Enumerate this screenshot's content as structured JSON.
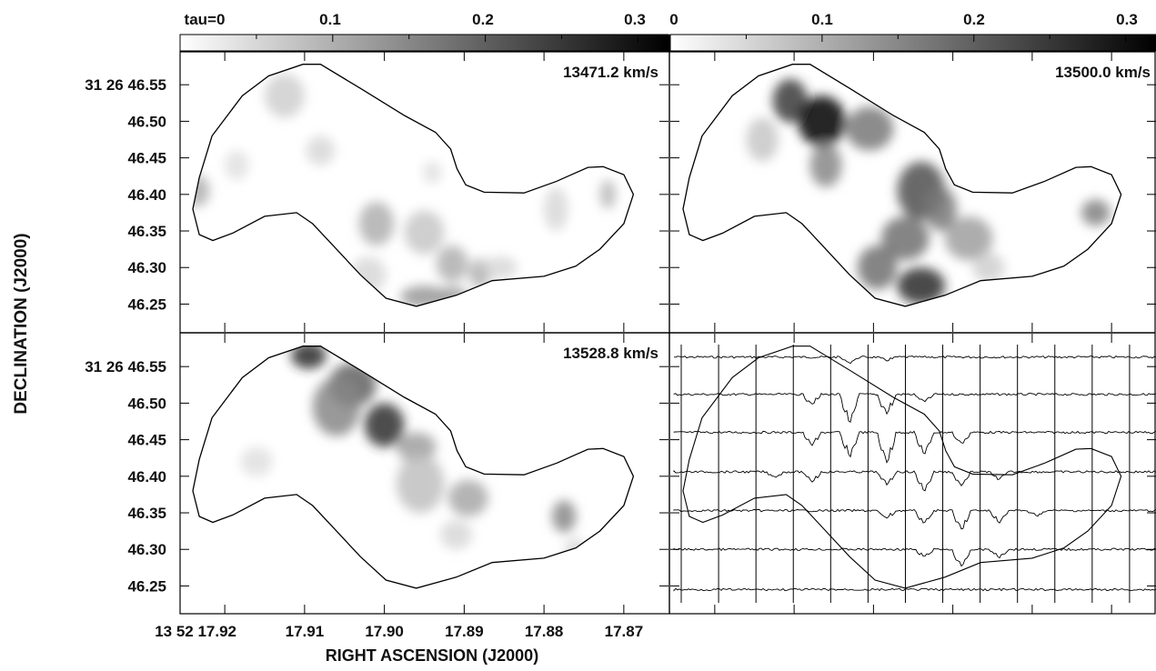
{
  "chart_data": {
    "type": "heatmap",
    "xlabel": "RIGHT ASCENSION (J2000)",
    "ylabel": "DECLINATION (J2000)",
    "x_ticks": [
      "13 52 17.92",
      "17.91",
      "17.90",
      "17.89",
      "17.88",
      "17.87"
    ],
    "x_tick_values": [
      17.92,
      17.91,
      17.9,
      17.89,
      17.88,
      17.87
    ],
    "y_ticks": [
      "31 26 46.55",
      "46.50",
      "46.45",
      "46.40",
      "46.35",
      "46.30",
      "46.25"
    ],
    "y_tick_values": [
      46.55,
      46.5,
      46.45,
      46.4,
      46.35,
      46.3,
      46.25
    ],
    "xlim": [
      17.9256,
      17.8644
    ],
    "ylim": [
      46.212,
      46.595
    ],
    "colorbars": [
      {
        "labels": [
          "tau=0",
          "0.1",
          "0.2",
          "0.3"
        ],
        "values": [
          0,
          0.1,
          0.2,
          0.3
        ],
        "range": [
          0,
          0.32
        ]
      },
      {
        "labels": [
          "0",
          "0.1",
          "0.2",
          "0.3"
        ],
        "values": [
          0,
          0.1,
          0.2,
          0.3
        ],
        "range": [
          0,
          0.32
        ]
      }
    ],
    "outline": [
      [
        17.9232,
        46.423
      ],
      [
        17.9216,
        46.48
      ],
      [
        17.9178,
        46.535
      ],
      [
        17.9145,
        46.562
      ],
      [
        17.9102,
        46.578
      ],
      [
        17.908,
        46.578
      ],
      [
        17.903,
        46.545
      ],
      [
        17.8975,
        46.508
      ],
      [
        17.8936,
        46.485
      ],
      [
        17.8917,
        46.462
      ],
      [
        17.8909,
        46.435
      ],
      [
        17.8898,
        46.413
      ],
      [
        17.8875,
        46.403
      ],
      [
        17.8825,
        46.402
      ],
      [
        17.8784,
        46.418
      ],
      [
        17.8745,
        46.437
      ],
      [
        17.8726,
        46.438
      ],
      [
        17.87,
        46.427
      ],
      [
        17.8688,
        46.4
      ],
      [
        17.87,
        46.36
      ],
      [
        17.873,
        46.325
      ],
      [
        17.876,
        46.302
      ],
      [
        17.88,
        46.288
      ],
      [
        17.8865,
        46.282
      ],
      [
        17.891,
        46.262
      ],
      [
        17.896,
        46.247
      ],
      [
        17.8998,
        46.258
      ],
      [
        17.903,
        46.29
      ],
      [
        17.906,
        46.325
      ],
      [
        17.909,
        46.36
      ],
      [
        17.911,
        46.375
      ],
      [
        17.915,
        46.37
      ],
      [
        17.919,
        46.347
      ],
      [
        17.9215,
        46.337
      ],
      [
        17.9232,
        46.345
      ],
      [
        17.924,
        46.38
      ]
    ],
    "panels": [
      {
        "velocity": "13471.2 km/s",
        "blobs": [
          [
            17.9235,
            46.405,
            0.0016,
            0.022,
            0.1
          ],
          [
            17.9125,
            46.535,
            0.0025,
            0.03,
            0.06
          ],
          [
            17.908,
            46.46,
            0.0018,
            0.02,
            0.05
          ],
          [
            17.9185,
            46.44,
            0.0015,
            0.02,
            0.04
          ],
          [
            17.901,
            46.36,
            0.0022,
            0.03,
            0.1
          ],
          [
            17.895,
            46.348,
            0.0025,
            0.03,
            0.07
          ],
          [
            17.895,
            46.26,
            0.003,
            0.015,
            0.13
          ],
          [
            17.8915,
            46.26,
            0.002,
            0.014,
            0.12
          ],
          [
            17.8915,
            46.305,
            0.002,
            0.025,
            0.1
          ],
          [
            17.888,
            46.292,
            0.0014,
            0.02,
            0.1
          ],
          [
            17.8855,
            46.3,
            0.0022,
            0.015,
            0.05
          ],
          [
            17.894,
            46.43,
            0.0012,
            0.015,
            0.04
          ],
          [
            17.8785,
            46.38,
            0.0015,
            0.03,
            0.05
          ],
          [
            17.872,
            46.4,
            0.001,
            0.02,
            0.09
          ],
          [
            17.902,
            46.29,
            0.0022,
            0.025,
            0.05
          ]
        ]
      },
      {
        "velocity": "13500.0 km/s",
        "blobs": [
          [
            17.9105,
            46.528,
            0.0022,
            0.03,
            0.25
          ],
          [
            17.9065,
            46.5,
            0.003,
            0.035,
            0.32
          ],
          [
            17.9005,
            46.49,
            0.003,
            0.03,
            0.17
          ],
          [
            17.906,
            46.44,
            0.002,
            0.03,
            0.15
          ],
          [
            17.914,
            46.475,
            0.002,
            0.03,
            0.07
          ],
          [
            17.894,
            46.405,
            0.003,
            0.04,
            0.22
          ],
          [
            17.8915,
            46.38,
            0.002,
            0.03,
            0.17
          ],
          [
            17.896,
            46.34,
            0.003,
            0.03,
            0.18
          ],
          [
            17.894,
            46.275,
            0.003,
            0.025,
            0.27
          ],
          [
            17.8995,
            46.3,
            0.0025,
            0.03,
            0.18
          ],
          [
            17.888,
            46.34,
            0.003,
            0.03,
            0.12
          ],
          [
            17.8855,
            46.3,
            0.002,
            0.02,
            0.06
          ],
          [
            17.872,
            46.375,
            0.0018,
            0.018,
            0.16
          ]
        ]
      },
      {
        "velocity": "13528.8 km/s",
        "blobs": [
          [
            17.9095,
            46.565,
            0.0022,
            0.018,
            0.27
          ],
          [
            17.904,
            46.525,
            0.003,
            0.03,
            0.2
          ],
          [
            17.9,
            46.47,
            0.0025,
            0.03,
            0.26
          ],
          [
            17.906,
            46.495,
            0.003,
            0.04,
            0.15
          ],
          [
            17.896,
            46.44,
            0.0025,
            0.02,
            0.12
          ],
          [
            17.8955,
            46.39,
            0.003,
            0.04,
            0.08
          ],
          [
            17.8895,
            46.37,
            0.0025,
            0.025,
            0.11
          ],
          [
            17.891,
            46.32,
            0.002,
            0.02,
            0.05
          ],
          [
            17.8775,
            46.345,
            0.0015,
            0.022,
            0.15
          ],
          [
            17.876,
            46.3,
            0.0015,
            0.015,
            0.05
          ],
          [
            17.916,
            46.42,
            0.002,
            0.02,
            0.04
          ],
          [
            17.913,
            46.34,
            0.002,
            0.025,
            0.04
          ]
        ]
      }
    ],
    "spectra": {
      "rows": [
        46.563,
        46.512,
        46.46,
        46.406,
        46.353,
        46.3,
        46.245
      ],
      "columns": 13,
      "absorption": [
        [
          0,
          4,
          0.09
        ],
        [
          0,
          5,
          0.05
        ],
        [
          1,
          3,
          0.15
        ],
        [
          1,
          4,
          0.45
        ],
        [
          1,
          5,
          0.3
        ],
        [
          1,
          6,
          0.12
        ],
        [
          2,
          3,
          0.2
        ],
        [
          2,
          4,
          0.38
        ],
        [
          2,
          5,
          0.48
        ],
        [
          2,
          6,
          0.35
        ],
        [
          2,
          7,
          0.18
        ],
        [
          3,
          2,
          0.08
        ],
        [
          3,
          3,
          0.15
        ],
        [
          3,
          5,
          0.2
        ],
        [
          3,
          6,
          0.3
        ],
        [
          3,
          7,
          0.22
        ],
        [
          3,
          8,
          0.12
        ],
        [
          4,
          5,
          0.12
        ],
        [
          4,
          6,
          0.2
        ],
        [
          4,
          7,
          0.3
        ],
        [
          4,
          8,
          0.18
        ],
        [
          4,
          9,
          0.08
        ],
        [
          5,
          6,
          0.12
        ],
        [
          5,
          7,
          0.28
        ],
        [
          5,
          8,
          0.12
        ]
      ]
    }
  }
}
